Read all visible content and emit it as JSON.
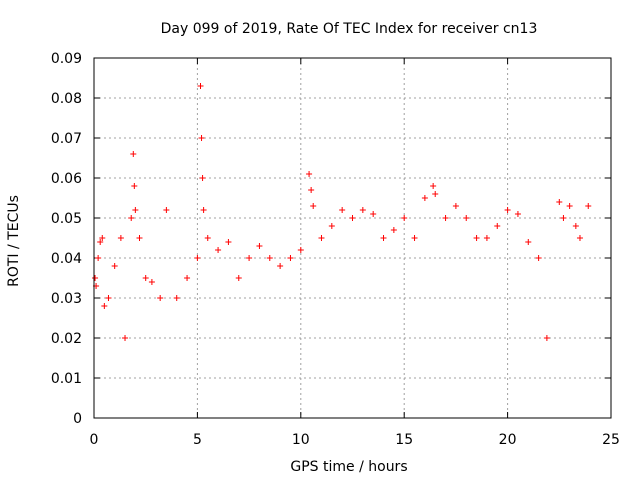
{
  "chart_data": {
    "type": "scatter",
    "title": "Day 099 of 2019, Rate Of TEC Index for receiver cn13",
    "xlabel": "GPS time / hours",
    "ylabel": "ROTI / TECUs",
    "xlim": [
      0,
      25
    ],
    "ylim": [
      0,
      0.09
    ],
    "x_ticks": [
      "0",
      "5",
      "10",
      "15",
      "20",
      "25"
    ],
    "y_ticks": [
      "0",
      "0.01",
      "0.02",
      "0.03",
      "0.04",
      "0.05",
      "0.06",
      "0.07",
      "0.08",
      "0.09"
    ],
    "grid": true,
    "marker": "+",
    "marker_color": "#ff0000",
    "series": [
      {
        "x": [
          0.05,
          0.1,
          0.2,
          0.3,
          0.4,
          0.5,
          0.7,
          1.0,
          1.3,
          1.5,
          1.8,
          1.9,
          1.95,
          2.0,
          2.2,
          2.5,
          2.8,
          3.2,
          3.5,
          4.0,
          4.5,
          5.0,
          5.15,
          5.2,
          5.25,
          5.3,
          5.5,
          6.0,
          6.5,
          7.0,
          7.5,
          8.0,
          8.5,
          9.0,
          9.5,
          10.0,
          10.4,
          10.5,
          10.6,
          11.0,
          11.5,
          12.0,
          12.5,
          13.0,
          13.5,
          14.0,
          14.5,
          15.0,
          15.5,
          16.0,
          16.4,
          16.5,
          17.0,
          17.5,
          18.0,
          18.5,
          19.0,
          19.5,
          20.0,
          20.5,
          21.0,
          21.5,
          21.9,
          22.5,
          22.7,
          23.0,
          23.3,
          23.5,
          23.9
        ],
        "y": [
          0.035,
          0.033,
          0.04,
          0.044,
          0.045,
          0.028,
          0.03,
          0.038,
          0.045,
          0.02,
          0.05,
          0.066,
          0.058,
          0.052,
          0.045,
          0.035,
          0.034,
          0.03,
          0.052,
          0.03,
          0.035,
          0.04,
          0.083,
          0.07,
          0.06,
          0.052,
          0.045,
          0.042,
          0.044,
          0.035,
          0.04,
          0.043,
          0.04,
          0.038,
          0.04,
          0.042,
          0.061,
          0.057,
          0.053,
          0.045,
          0.048,
          0.052,
          0.05,
          0.052,
          0.051,
          0.045,
          0.047,
          0.05,
          0.045,
          0.055,
          0.058,
          0.056,
          0.05,
          0.053,
          0.05,
          0.045,
          0.045,
          0.048,
          0.052,
          0.051,
          0.044,
          0.04,
          0.02,
          0.054,
          0.05,
          0.053,
          0.048,
          0.045,
          0.053
        ]
      }
    ]
  }
}
